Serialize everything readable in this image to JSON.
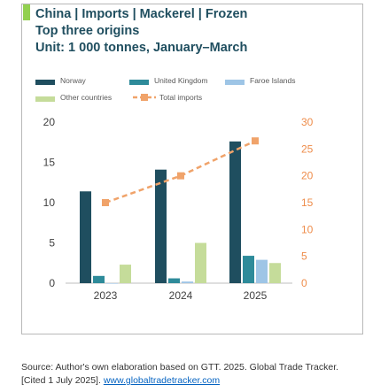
{
  "title_lines": [
    "China | Imports | Mackerel | Frozen",
    "Top three origins",
    "Unit: 1 000 tonnes, January–March"
  ],
  "colors": {
    "accent": "#92d050",
    "norway": "#1f4e5f",
    "united_kingdom": "#2e8b9a",
    "faroe": "#9ec5e6",
    "other": "#c5dc9a",
    "total": "#f0a36a",
    "right_axis": "#ee8c4a",
    "left_axis": "#404040"
  },
  "chart_data": {
    "type": "bar",
    "categories": [
      "2023",
      "2024",
      "2025"
    ],
    "series": [
      {
        "name": "Norway",
        "values": [
          11.4,
          14.1,
          17.6
        ],
        "axis": "left"
      },
      {
        "name": "United Kingdom",
        "values": [
          0.9,
          0.6,
          3.4
        ],
        "axis": "left"
      },
      {
        "name": "Faroe Islands",
        "values": [
          0,
          0.2,
          2.9
        ],
        "axis": "left"
      },
      {
        "name": "Other countries",
        "values": [
          2.3,
          5.0,
          2.5
        ],
        "axis": "left"
      },
      {
        "name": "Total imports",
        "values": [
          15,
          20,
          26.5
        ],
        "axis": "right",
        "style": "dashed-line-square-markers"
      }
    ],
    "ylim_left": [
      0,
      20
    ],
    "yticks_left": [
      "0",
      "5",
      "10",
      "15",
      "20"
    ],
    "ylim_right": [
      0,
      30
    ],
    "yticks_right": [
      "0",
      "5",
      "10",
      "15",
      "20",
      "25",
      "30"
    ],
    "legend_position": "top",
    "grid": false
  },
  "source": {
    "text": "Source: Author's own elaboration based on GTT. 2025. Global Trade Tracker. [Cited 1 July 2025]. ",
    "link": "www.globaltradetracker.com"
  }
}
